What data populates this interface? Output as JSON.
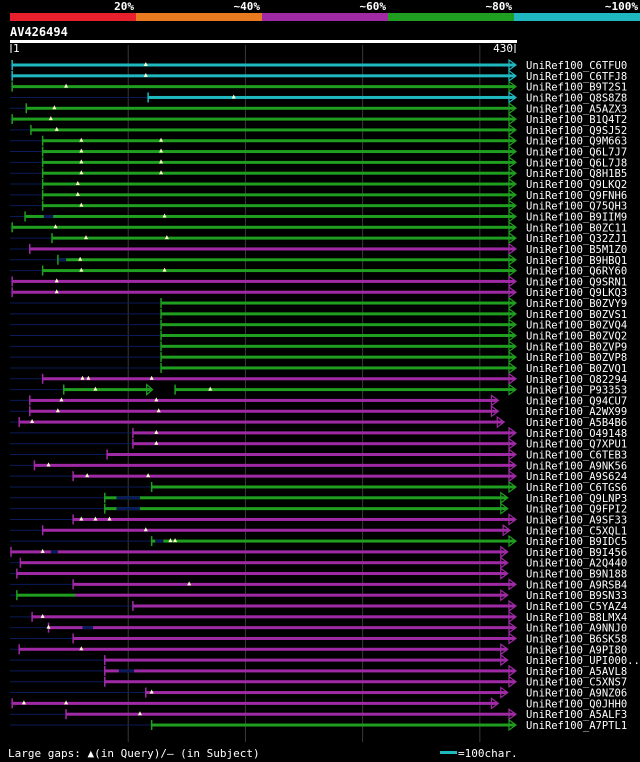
{
  "chart_data": {
    "type": "alignment",
    "query_id": "AV426494",
    "query_start": "1",
    "query_end": "430",
    "query_length": 430,
    "legend": {
      "identity_bands": [
        {
          "label": "20%",
          "color": "#e8202e"
        },
        {
          "label": "~40%",
          "color": "#e87a20"
        },
        {
          "label": "~60%",
          "color": "#a02aa6"
        },
        {
          "label": "~80%",
          "color": "#1f9e1f"
        },
        {
          "label": "~100%",
          "color": "#1fb8c0"
        }
      ],
      "gaps_text": "Large gaps: ▲(in Query)/– (in Subject)",
      "scale_text": "=100char.",
      "scale_color": "#1fb8c0"
    },
    "colors": {
      "cyan": "#1fb8c0",
      "green": "#1f9e1f",
      "magenta": "#a02aa6",
      "navy": "#0a1a5a"
    },
    "hits": [
      {
        "id": "UniRef100_C6TFU0",
        "start": 1,
        "end": 430,
        "segments": [
          [
            1,
            430,
            "cyan"
          ]
        ],
        "qgaps": [
          115
        ],
        "sgaps": []
      },
      {
        "id": "UniRef100_C6TFJ8",
        "start": 1,
        "end": 430,
        "segments": [
          [
            1,
            430,
            "cyan"
          ]
        ],
        "qgaps": [
          115
        ],
        "sgaps": []
      },
      {
        "id": "UniRef100_B9T2S1",
        "start": 1,
        "end": 430,
        "segments": [
          [
            1,
            430,
            "green"
          ]
        ],
        "qgaps": [
          47
        ],
        "sgaps": []
      },
      {
        "id": "UniRef100_Q8S8Z8",
        "start": 117,
        "end": 430,
        "segments": [
          [
            117,
            430,
            "cyan"
          ]
        ],
        "qgaps": [
          190
        ],
        "sgaps": []
      },
      {
        "id": "UniRef100_A5AZX3",
        "start": 13,
        "end": 430,
        "segments": [
          [
            13,
            430,
            "green"
          ]
        ],
        "qgaps": [
          37
        ],
        "sgaps": []
      },
      {
        "id": "UniRef100_B1Q4T2",
        "start": 1,
        "end": 430,
        "segments": [
          [
            1,
            430,
            "green"
          ]
        ],
        "qgaps": [
          34
        ],
        "sgaps": []
      },
      {
        "id": "UniRef100_Q9SJ52",
        "start": 17,
        "end": 430,
        "segments": [
          [
            17,
            430,
            "green"
          ]
        ],
        "qgaps": [
          39
        ],
        "sgaps": []
      },
      {
        "id": "UniRef100_Q9M663",
        "start": 27,
        "end": 430,
        "segments": [
          [
            27,
            430,
            "green"
          ]
        ],
        "qgaps": [
          60,
          128
        ],
        "sgaps": []
      },
      {
        "id": "UniRef100_Q6L7J7",
        "start": 27,
        "end": 430,
        "segments": [
          [
            27,
            430,
            "green"
          ]
        ],
        "qgaps": [
          60,
          128
        ],
        "sgaps": []
      },
      {
        "id": "UniRef100_Q6L7J8",
        "start": 27,
        "end": 430,
        "segments": [
          [
            27,
            430,
            "green"
          ]
        ],
        "qgaps": [
          60,
          128
        ],
        "sgaps": []
      },
      {
        "id": "UniRef100_Q8H1B5",
        "start": 27,
        "end": 430,
        "segments": [
          [
            27,
            430,
            "green"
          ]
        ],
        "qgaps": [
          60,
          128
        ],
        "sgaps": []
      },
      {
        "id": "UniRef100_Q9LKQ2",
        "start": 27,
        "end": 430,
        "segments": [
          [
            27,
            430,
            "green"
          ]
        ],
        "qgaps": [
          57
        ],
        "sgaps": []
      },
      {
        "id": "UniRef100_Q9FNH6",
        "start": 27,
        "end": 430,
        "segments": [
          [
            27,
            430,
            "green"
          ]
        ],
        "qgaps": [
          57
        ],
        "sgaps": []
      },
      {
        "id": "UniRef100_Q75QH3",
        "start": 27,
        "end": 430,
        "segments": [
          [
            27,
            430,
            "green"
          ]
        ],
        "qgaps": [
          60
        ],
        "sgaps": []
      },
      {
        "id": "UniRef100_B9IIM9",
        "start": 12,
        "end": 430,
        "segments": [
          [
            12,
            430,
            "green"
          ]
        ],
        "qgaps": [
          131
        ],
        "sgaps": [
          [
            28,
            36
          ]
        ]
      },
      {
        "id": "UniRef100_B0ZC11",
        "start": 1,
        "end": 430,
        "segments": [
          [
            1,
            430,
            "green"
          ]
        ],
        "qgaps": [
          38
        ],
        "sgaps": []
      },
      {
        "id": "UniRef100_Q32ZJ1",
        "start": 35,
        "end": 430,
        "segments": [
          [
            35,
            430,
            "green"
          ]
        ],
        "qgaps": [
          64,
          133
        ],
        "sgaps": []
      },
      {
        "id": "UniRef100_B5M1Z0",
        "start": 16,
        "end": 430,
        "segments": [
          [
            16,
            430,
            "magenta"
          ]
        ],
        "qgaps": [],
        "sgaps": []
      },
      {
        "id": "UniRef100_B9HBQ1",
        "start": 40,
        "end": 430,
        "segments": [
          [
            40,
            430,
            "green"
          ]
        ],
        "qgaps": [
          59
        ],
        "sgaps": [
          [
            40,
            47
          ]
        ]
      },
      {
        "id": "UniRef100_Q6RY60",
        "start": 27,
        "end": 430,
        "segments": [
          [
            27,
            430,
            "green"
          ]
        ],
        "qgaps": [
          60,
          131
        ],
        "sgaps": []
      },
      {
        "id": "UniRef100_Q9SRN1",
        "start": 1,
        "end": 430,
        "segments": [
          [
            1,
            430,
            "magenta"
          ]
        ],
        "qgaps": [
          39
        ],
        "sgaps": []
      },
      {
        "id": "UniRef100_Q9LKQ3",
        "start": 1,
        "end": 430,
        "segments": [
          [
            1,
            430,
            "magenta"
          ]
        ],
        "qgaps": [
          39
        ],
        "sgaps": []
      },
      {
        "id": "UniRef100_B0ZVY9",
        "start": 128,
        "end": 430,
        "segments": [
          [
            128,
            430,
            "green"
          ]
        ],
        "qgaps": [],
        "sgaps": []
      },
      {
        "id": "UniRef100_B0ZVS1",
        "start": 128,
        "end": 430,
        "segments": [
          [
            128,
            430,
            "green"
          ]
        ],
        "qgaps": [],
        "sgaps": []
      },
      {
        "id": "UniRef100_B0ZVQ4",
        "start": 128,
        "end": 430,
        "segments": [
          [
            128,
            430,
            "green"
          ]
        ],
        "qgaps": [],
        "sgaps": []
      },
      {
        "id": "UniRef100_B0ZVQ2",
        "start": 128,
        "end": 430,
        "segments": [
          [
            128,
            430,
            "green"
          ]
        ],
        "qgaps": [],
        "sgaps": []
      },
      {
        "id": "UniRef100_B0ZVP9",
        "start": 128,
        "end": 430,
        "segments": [
          [
            128,
            430,
            "green"
          ]
        ],
        "qgaps": [],
        "sgaps": []
      },
      {
        "id": "UniRef100_B0ZVP8",
        "start": 128,
        "end": 430,
        "segments": [
          [
            128,
            430,
            "green"
          ]
        ],
        "qgaps": [],
        "sgaps": []
      },
      {
        "id": "UniRef100_B0ZVQ1",
        "start": 128,
        "end": 430,
        "segments": [
          [
            128,
            430,
            "green"
          ]
        ],
        "qgaps": [],
        "sgaps": []
      },
      {
        "id": "UniRef100_O82294",
        "start": 27,
        "end": 430,
        "segments": [
          [
            27,
            430,
            "magenta"
          ]
        ],
        "qgaps": [
          61,
          66,
          120
        ],
        "sgaps": []
      },
      {
        "id": "UniRef100_P93353",
        "start": 45,
        "end": 430,
        "segments": [
          [
            45,
            120,
            "green"
          ],
          [
            140,
            430,
            "green"
          ]
        ],
        "qgaps": [
          72,
          170
        ],
        "sgaps": []
      },
      {
        "id": "UniRef100_Q94CU7",
        "start": 16,
        "end": 415,
        "segments": [
          [
            16,
            415,
            "magenta"
          ]
        ],
        "qgaps": [
          43,
          124
        ],
        "sgaps": []
      },
      {
        "id": "UniRef100_A2WX99",
        "start": 16,
        "end": 415,
        "segments": [
          [
            16,
            415,
            "magenta"
          ]
        ],
        "qgaps": [
          40,
          126
        ],
        "sgaps": []
      },
      {
        "id": "UniRef100_A5B4B6",
        "start": 7,
        "end": 420,
        "segments": [
          [
            7,
            420,
            "magenta"
          ]
        ],
        "qgaps": [
          18
        ],
        "sgaps": []
      },
      {
        "id": "UniRef100_O49148",
        "start": 104,
        "end": 430,
        "segments": [
          [
            104,
            430,
            "magenta"
          ]
        ],
        "qgaps": [
          124
        ],
        "sgaps": []
      },
      {
        "id": "UniRef100_Q7XPU1",
        "start": 104,
        "end": 430,
        "segments": [
          [
            104,
            430,
            "magenta"
          ]
        ],
        "qgaps": [
          124
        ],
        "sgaps": []
      },
      {
        "id": "UniRef100_C6TEB3",
        "start": 82,
        "end": 430,
        "segments": [
          [
            82,
            430,
            "magenta"
          ]
        ],
        "qgaps": [],
        "sgaps": []
      },
      {
        "id": "UniRef100_A9NK56",
        "start": 20,
        "end": 430,
        "segments": [
          [
            20,
            430,
            "magenta"
          ]
        ],
        "qgaps": [
          32
        ],
        "sgaps": []
      },
      {
        "id": "UniRef100_A9S624",
        "start": 53,
        "end": 430,
        "segments": [
          [
            53,
            430,
            "magenta"
          ]
        ],
        "qgaps": [
          65,
          117
        ],
        "sgaps": []
      },
      {
        "id": "UniRef100_C6TGS6",
        "start": 120,
        "end": 430,
        "segments": [
          [
            120,
            430,
            "green"
          ]
        ],
        "qgaps": [],
        "sgaps": []
      },
      {
        "id": "UniRef100_Q9LNP3",
        "start": 80,
        "end": 423,
        "segments": [
          [
            80,
            423,
            "green"
          ]
        ],
        "qgaps": [],
        "sgaps": [
          [
            90,
            110
          ]
        ]
      },
      {
        "id": "UniRef100_Q9FPI2",
        "start": 80,
        "end": 423,
        "segments": [
          [
            80,
            423,
            "green"
          ]
        ],
        "qgaps": [],
        "sgaps": [
          [
            90,
            110
          ]
        ]
      },
      {
        "id": "UniRef100_A9SF33",
        "start": 53,
        "end": 430,
        "segments": [
          [
            53,
            430,
            "magenta"
          ]
        ],
        "qgaps": [
          60,
          72,
          84
        ],
        "sgaps": []
      },
      {
        "id": "UniRef100_C5XQL1",
        "start": 27,
        "end": 425,
        "segments": [
          [
            27,
            425,
            "magenta"
          ]
        ],
        "qgaps": [
          115
        ],
        "sgaps": []
      },
      {
        "id": "UniRef100_B9IDC5",
        "start": 120,
        "end": 430,
        "segments": [
          [
            120,
            430,
            "green"
          ]
        ],
        "qgaps": [
          136,
          140
        ],
        "sgaps": [
          [
            123,
            130
          ]
        ]
      },
      {
        "id": "UniRef100_B9I456",
        "start": 0,
        "end": 423,
        "segments": [
          [
            0,
            423,
            "magenta"
          ]
        ],
        "qgaps": [
          27
        ],
        "sgaps": [
          [
            34,
            40
          ]
        ]
      },
      {
        "id": "UniRef100_A2Q440",
        "start": 8,
        "end": 423,
        "segments": [
          [
            8,
            423,
            "magenta"
          ]
        ],
        "qgaps": [],
        "sgaps": []
      },
      {
        "id": "UniRef100_B9N188",
        "start": 5,
        "end": 423,
        "segments": [
          [
            5,
            423,
            "magenta"
          ]
        ],
        "qgaps": [],
        "sgaps": []
      },
      {
        "id": "UniRef100_A9RSB4",
        "start": 53,
        "end": 430,
        "segments": [
          [
            53,
            430,
            "magenta"
          ]
        ],
        "qgaps": [
          152
        ],
        "sgaps": []
      },
      {
        "id": "UniRef100_B9SN33",
        "start": 5,
        "end": 423,
        "segments": [
          [
            5,
            55,
            "green"
          ],
          [
            55,
            423,
            "magenta"
          ]
        ],
        "qgaps": [],
        "sgaps": []
      },
      {
        "id": "UniRef100_C5YAZ4",
        "start": 104,
        "end": 430,
        "segments": [
          [
            104,
            430,
            "magenta"
          ]
        ],
        "qgaps": [],
        "sgaps": []
      },
      {
        "id": "UniRef100_B8LMX4",
        "start": 18,
        "end": 430,
        "segments": [
          [
            18,
            430,
            "magenta"
          ]
        ],
        "qgaps": [
          27
        ],
        "sgaps": []
      },
      {
        "id": "UniRef100_A9NNJ0",
        "start": 32,
        "end": 430,
        "segments": [
          [
            32,
            430,
            "magenta"
          ]
        ],
        "qgaps": [
          32
        ],
        "sgaps": [
          [
            61,
            70
          ]
        ]
      },
      {
        "id": "UniRef100_B6SK58",
        "start": 53,
        "end": 430,
        "segments": [
          [
            53,
            430,
            "magenta"
          ]
        ],
        "qgaps": [],
        "sgaps": []
      },
      {
        "id": "UniRef100_A9PI80",
        "start": 7,
        "end": 423,
        "segments": [
          [
            7,
            423,
            "magenta"
          ]
        ],
        "qgaps": [
          60
        ],
        "sgaps": []
      },
      {
        "id": "UniRef100_UPI000...",
        "start": 80,
        "end": 423,
        "segments": [
          [
            80,
            423,
            "magenta"
          ]
        ],
        "qgaps": [],
        "sgaps": []
      },
      {
        "id": "UniRef100_A5AVL8",
        "start": 80,
        "end": 430,
        "segments": [
          [
            80,
            430,
            "magenta"
          ]
        ],
        "qgaps": [],
        "sgaps": [
          [
            92,
            105
          ]
        ]
      },
      {
        "id": "UniRef100_C5XNS7",
        "start": 80,
        "end": 430,
        "segments": [
          [
            80,
            430,
            "magenta"
          ]
        ],
        "qgaps": [],
        "sgaps": []
      },
      {
        "id": "UniRef100_A9NZ06",
        "start": 115,
        "end": 423,
        "segments": [
          [
            115,
            423,
            "magenta"
          ]
        ],
        "qgaps": [
          120
        ],
        "sgaps": []
      },
      {
        "id": "UniRef100_Q0JHH0",
        "start": 1,
        "end": 415,
        "segments": [
          [
            1,
            415,
            "magenta"
          ]
        ],
        "qgaps": [
          11,
          47
        ],
        "sgaps": []
      },
      {
        "id": "UniRef100_A5ALF3",
        "start": 47,
        "end": 430,
        "segments": [
          [
            47,
            430,
            "magenta"
          ]
        ],
        "qgaps": [
          110
        ],
        "sgaps": []
      },
      {
        "id": "UniRef100_A7PTL1",
        "start": 120,
        "end": 430,
        "segments": [
          [
            120,
            430,
            "green"
          ]
        ],
        "qgaps": [],
        "sgaps": []
      }
    ]
  }
}
